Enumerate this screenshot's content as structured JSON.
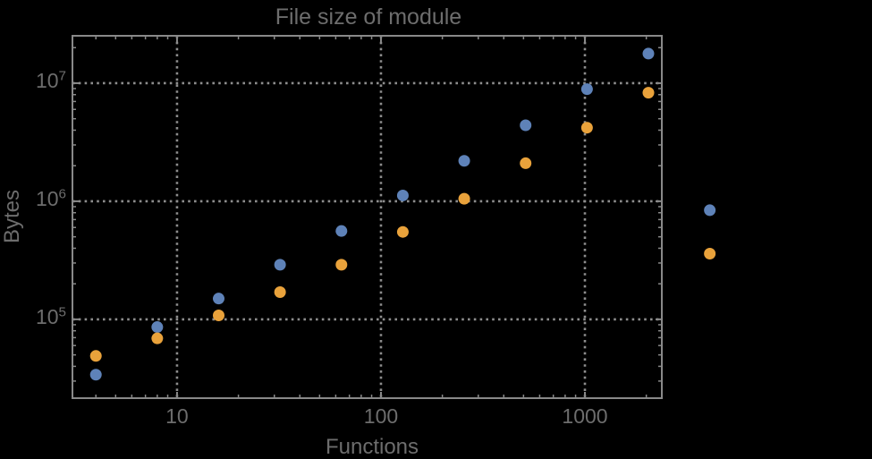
{
  "figure": {
    "background_color": "#000000",
    "text_color": "#6d6d6d",
    "frame_color": "#898989",
    "grid_color": "#8d8d8d"
  },
  "chart_data": {
    "type": "scatter",
    "title": "File size of module",
    "xlabel": "Functions",
    "ylabel": "Bytes",
    "xscale": "log",
    "yscale": "log",
    "xlim": [
      3.07,
      2383
    ],
    "ylim": [
      21500,
      25200000
    ],
    "grid": "dotted lines at powers of ten, both axes",
    "legend_position": "none",
    "marker": "filled circle, diameter 13px",
    "note": "last data point pair (x=4096) falls outside the right edge of the plot frame and is drawn unclipped",
    "x": [
      4,
      8,
      16,
      32,
      64,
      128,
      256,
      512,
      1024,
      2048,
      4096
    ],
    "series": [
      {
        "name": "series-1-blue",
        "color": "#5e82b8",
        "values": [
          34000,
          86000,
          150000,
          290000,
          560000,
          1120000,
          2200000,
          4400000,
          8900000,
          17800000,
          840000
        ]
      },
      {
        "name": "series-2-orange",
        "color": "#e9a23b",
        "values": [
          49000,
          69000,
          108000,
          170000,
          290000,
          550000,
          1050000,
          2100000,
          4200000,
          8300000,
          360000
        ]
      }
    ],
    "x_ticks": [
      {
        "value": 10,
        "label": "10"
      },
      {
        "value": 100,
        "label": "100"
      },
      {
        "value": 1000,
        "label": "1000"
      }
    ],
    "y_ticks": [
      {
        "value": 100000,
        "base": "10",
        "exp": "5"
      },
      {
        "value": 1000000,
        "base": "10",
        "exp": "6"
      },
      {
        "value": 10000000,
        "base": "10",
        "exp": "7"
      }
    ]
  }
}
